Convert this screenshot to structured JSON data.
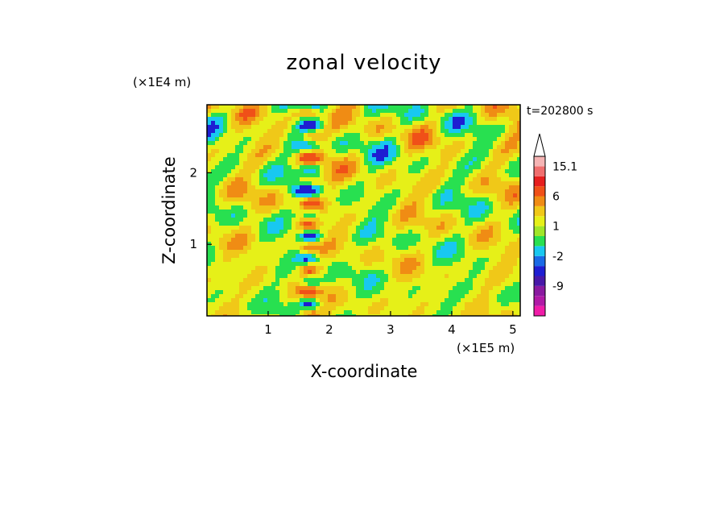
{
  "chart_data": {
    "type": "heatmap",
    "title": "zonal velocity",
    "xlabel": "X-coordinate",
    "ylabel": "Z-coordinate",
    "x_unit": "(×1E5 m)",
    "y_unit": "(×1E4 m)",
    "time_label": "t=202800 s",
    "xlim": [
      0,
      5.12
    ],
    "ylim": [
      0,
      2.95
    ],
    "x_ticks": [
      {
        "value": 1,
        "label": "1"
      },
      {
        "value": 2,
        "label": "2"
      },
      {
        "value": 3,
        "label": "3"
      },
      {
        "value": 4,
        "label": "4"
      },
      {
        "value": 5,
        "label": "5"
      }
    ],
    "y_ticks": [
      {
        "value": 1,
        "label": "1"
      },
      {
        "value": 2,
        "label": "2"
      }
    ],
    "colorbar": {
      "levels": [
        {
          "color": "#f01ca8",
          "label": ""
        },
        {
          "color": "#b01aa6",
          "label": ""
        },
        {
          "color": "#8a1aa0",
          "label": "-9"
        },
        {
          "color": "#4818a8",
          "label": ""
        },
        {
          "color": "#1e1ed2",
          "label": ""
        },
        {
          "color": "#1a6ae6",
          "label": "-2"
        },
        {
          "color": "#18c8f0",
          "label": ""
        },
        {
          "color": "#28e050",
          "label": ""
        },
        {
          "color": "#a0e628",
          "label": "1"
        },
        {
          "color": "#e6f018",
          "label": ""
        },
        {
          "color": "#f0c818",
          "label": ""
        },
        {
          "color": "#f08c14",
          "label": "6"
        },
        {
          "color": "#f05018",
          "label": ""
        },
        {
          "color": "#e61e1e",
          "label": ""
        },
        {
          "color": "#f06e6e",
          "label": "15.1"
        },
        {
          "color": "#f5b4b4",
          "label": ""
        }
      ],
      "extend_max": true
    },
    "field_palette": {
      "strong_negative": "#1e1ed2",
      "negative": "#18c8f0",
      "weak": "#28e050",
      "near_zero": "#e6f018",
      "positive": "#f0c818",
      "strong_positive": "#f08c14",
      "peak_positive": "#f05018"
    }
  }
}
